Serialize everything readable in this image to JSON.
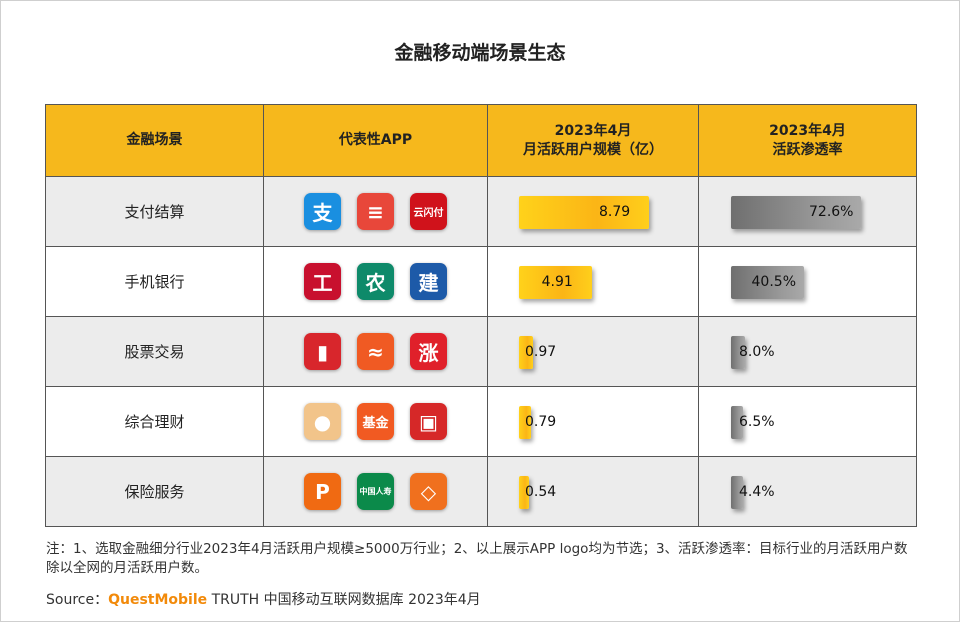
{
  "title": "金融移动端场景生态",
  "headers": {
    "scene": "金融场景",
    "app": "代表性APP",
    "mau_line1": "2023年4月",
    "mau_line2": "月活跃用户规模（亿）",
    "pen_line1": "2023年4月",
    "pen_line2": "活跃渗透率"
  },
  "colors": {
    "header": "#f6b81c",
    "mau_bar": "#fbb516",
    "pen_bar": "#8a8a8a",
    "brand": "#f28a0a"
  },
  "rows": [
    {
      "scene": "支付结算",
      "mau_label": "8.79",
      "pen_label": "72.6%",
      "apps": [
        {
          "icon": "alipay-icon",
          "bg": "#1a8fe0",
          "glyph": "支"
        },
        {
          "icon": "huawei-wallet-icon",
          "bg": "#e8473a",
          "glyph": "≡"
        },
        {
          "icon": "unionpay-icon",
          "bg": "#d0121b",
          "glyph": "云闪付"
        }
      ]
    },
    {
      "scene": "手机银行",
      "mau_label": "4.91",
      "pen_label": "40.5%",
      "apps": [
        {
          "icon": "icbc-icon",
          "bg": "#c8102e",
          "glyph": "工"
        },
        {
          "icon": "abc-bank-icon",
          "bg": "#0e8a6a",
          "glyph": "农"
        },
        {
          "icon": "ccb-icon",
          "bg": "#1d5aa8",
          "glyph": "建"
        }
      ]
    },
    {
      "scene": "股票交易",
      "mau_label": "0.97",
      "pen_label": "8.0%",
      "apps": [
        {
          "icon": "stock-chart-icon",
          "bg": "#d8262c",
          "glyph": "▮"
        },
        {
          "icon": "east-money-icon",
          "bg": "#f05a23",
          "glyph": "≈"
        },
        {
          "icon": "zhangle-icon",
          "bg": "#e0202a",
          "glyph": "涨"
        }
      ]
    },
    {
      "scene": "综合理财",
      "mau_label": "0.79",
      "pen_label": "6.5%",
      "apps": [
        {
          "icon": "mascot-finance-icon",
          "bg": "#f2c48a",
          "glyph": "●"
        },
        {
          "icon": "fund-icon",
          "bg": "#f15a22",
          "glyph": "基金"
        },
        {
          "icon": "wealth-icon",
          "bg": "#d62828",
          "glyph": "▣"
        }
      ]
    },
    {
      "scene": "保险服务",
      "mau_label": "0.54",
      "pen_label": "4.4%",
      "apps": [
        {
          "icon": "pingan-insurance-icon",
          "bg": "#f06a12",
          "glyph": "P"
        },
        {
          "icon": "china-life-icon",
          "bg": "#0b8a4a",
          "glyph": "中国人寿"
        },
        {
          "icon": "insurance-diamond-icon",
          "bg": "#f0701e",
          "glyph": "◇"
        }
      ]
    }
  ],
  "chart_data": {
    "type": "table",
    "title": "金融移动端场景生态",
    "categories": [
      "支付结算",
      "手机银行",
      "股票交易",
      "综合理财",
      "保险服务"
    ],
    "series": [
      {
        "name": "2023年4月 月活跃用户规模（亿）",
        "values": [
          8.79,
          4.91,
          0.97,
          0.79,
          0.54
        ]
      },
      {
        "name": "2023年4月 活跃渗透率",
        "values": [
          72.6,
          40.5,
          8.0,
          6.5,
          4.4
        ]
      }
    ]
  },
  "note": "注：1、选取金融细分行业2023年4月活跃用户规模≥5000万行业；2、以上展示APP logo均为节选；3、活跃渗透率：目标行业的月活跃用户数除以全网的月活跃用户数。",
  "source": {
    "prefix": "Source：",
    "brand_bold": "QuestMobile",
    "brand_rest": " TRUTH 中国移动互联网数据库 2023年4月"
  }
}
